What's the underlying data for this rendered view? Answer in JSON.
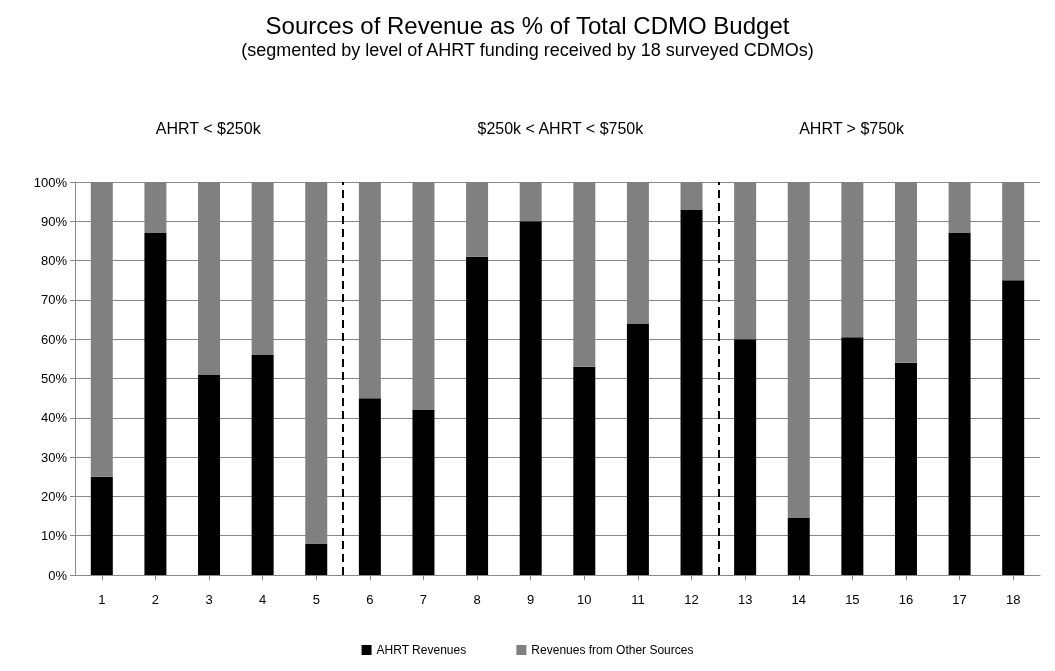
{
  "chart_data": {
    "type": "bar",
    "title": "Sources of Revenue as % of Total CDMO Budget",
    "subtitle": "(segmented by level of AHRT funding received by 18 surveyed CDMOs)",
    "x": [
      1,
      2,
      3,
      4,
      5,
      6,
      7,
      8,
      9,
      10,
      11,
      12,
      13,
      14,
      15,
      16,
      17,
      18
    ],
    "xlim": [
      0.5,
      18.5
    ],
    "xticks": [
      1,
      2,
      3,
      4,
      5,
      6,
      7,
      8,
      9,
      10,
      11,
      12,
      13,
      14,
      15,
      16,
      17,
      18
    ],
    "stacked": true,
    "series": [
      {
        "name": "AHRT Revenues",
        "color": "#000000",
        "values": [
          25,
          87,
          51,
          56,
          8,
          45,
          42,
          81,
          90,
          53,
          64,
          93,
          60,
          14.5,
          60.5,
          54,
          87,
          75
        ]
      },
      {
        "name": "Revenues from Other Sources",
        "color": "#808080",
        "values": [
          75,
          13,
          49,
          44,
          92,
          55,
          58,
          19,
          10,
          47,
          36,
          7,
          40,
          85.5,
          39.5,
          46,
          13,
          25
        ]
      }
    ],
    "ylim": [
      0,
      100
    ],
    "yticks": [
      {
        "value": 0,
        "label": "0%"
      },
      {
        "value": 10,
        "label": "10%"
      },
      {
        "value": 20,
        "label": "20%"
      },
      {
        "value": 30,
        "label": "30%"
      },
      {
        "value": 40,
        "label": "40%"
      },
      {
        "value": 50,
        "label": "50%"
      },
      {
        "value": 60,
        "label": "60%"
      },
      {
        "value": 70,
        "label": "70%"
      },
      {
        "value": 80,
        "label": "80%"
      },
      {
        "value": 90,
        "label": "90%"
      },
      {
        "value": 100,
        "label": "100%"
      }
    ],
    "grid": "y",
    "legend": "bottom",
    "ref_lines": [
      {
        "axis": "x",
        "value": 5.5,
        "label": null,
        "color": "#000000",
        "line_style": "dashed"
      },
      {
        "axis": "x",
        "value": 12.5,
        "label": null,
        "color": "#000000",
        "line_style": "dashed"
      }
    ],
    "annotations": [
      "AHRT < $250k",
      "$250k < AHRT < $750k",
      "AHRT > $750k"
    ]
  }
}
